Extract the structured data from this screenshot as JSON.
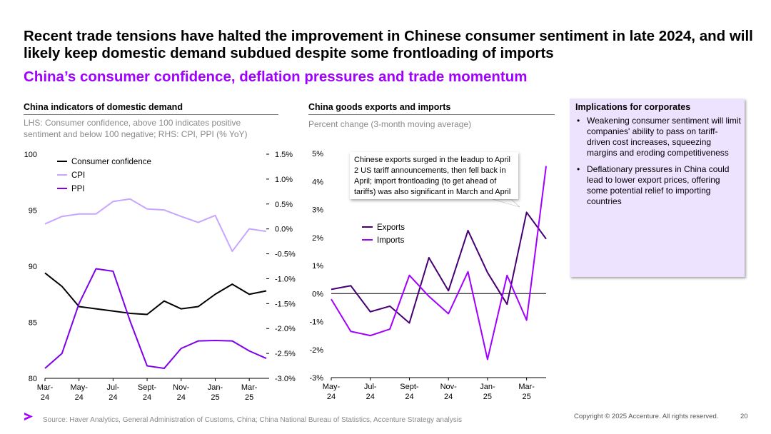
{
  "header": {
    "title": "Recent trade tensions have halted the improvement in Chinese consumer sentiment in late 2024, and will likely keep domestic demand subdued despite some frontloading of imports",
    "subtitle": "China’s consumer confidence, deflation pressures and trade momentum"
  },
  "left_panel": {
    "title": "China indicators of domestic demand",
    "note": "LHS: Consumer confidence, above 100 indicates positive sentiment and below 100 negative; RHS: CPI, PPI (% YoY)"
  },
  "mid_panel": {
    "title": "China goods exports and  imports",
    "note": "Percent change (3-month moving average)",
    "callout": "Chinese exports surged in the leadup to April 2 US tariff announcements, then fell back in April; import frontloading (to get ahead of tariffs) was also significant in March and April"
  },
  "implications": {
    "title": "Implications for corporates",
    "bullets": [
      "Weakening consumer sentiment will limit companies' ability to pass on tariff-driven cost increases, squeezing margins and eroding competitiveness",
      "Deflationary pressures in China could lead to lower export prices, offering some potential relief to importing countries"
    ]
  },
  "footer": {
    "source": "Source: Haver Analytics, General Administration of Customs, China; China National Bureau of Statistics, Accenture Strategy analysis",
    "copyright": "Copyright © 2025 Accenture. All rights reserved.",
    "page": "20",
    "logo_icon": "accenture-chevron-icon"
  },
  "colors": {
    "accent": "#a100ff",
    "consumer_confidence": "#000000",
    "cpi": "#c7a6ff",
    "ppi": "#7e00e8",
    "exports": "#460073",
    "imports": "#a100ff",
    "implications_bg": "#ede3ff"
  },
  "chart_data": [
    {
      "type": "line",
      "title": "China indicators of domestic demand",
      "x_tick_labels": [
        [
          "Mar-",
          "24"
        ],
        [
          "May-",
          "24"
        ],
        [
          "Jul-",
          "24"
        ],
        [
          "Sept-",
          "24"
        ],
        [
          "Nov-",
          "24"
        ],
        [
          "Jan-",
          "25"
        ],
        [
          "Mar-",
          "25"
        ]
      ],
      "y_left": {
        "ylim": [
          80,
          100
        ],
        "ticks": [
          "80",
          "85",
          "90",
          "95",
          "100"
        ]
      },
      "y_right": {
        "ylim": [
          -3.0,
          1.5
        ],
        "ticks": [
          "-3.0%",
          "-2.5%",
          "-2.0%",
          "-1.5%",
          "-1.0%",
          "-0.5%",
          "0.0%",
          "0.5%",
          "1.0%",
          "1.5%"
        ]
      },
      "months": [
        "2024-03",
        "2024-04",
        "2024-05",
        "2024-06",
        "2024-07",
        "2024-08",
        "2024-09",
        "2024-10",
        "2024-11",
        "2024-12",
        "2025-01",
        "2025-02",
        "2025-03",
        "2025-04"
      ],
      "series": [
        {
          "name": "Consumer confidence",
          "axis": "left",
          "values": [
            89.4,
            88.2,
            86.4,
            86.2,
            86.0,
            85.8,
            85.7,
            86.9,
            86.2,
            86.4,
            87.5,
            88.4,
            87.5,
            87.8
          ]
        },
        {
          "name": "CPI",
          "axis": "right",
          "values": [
            0.1,
            0.25,
            0.3,
            0.3,
            0.55,
            0.6,
            0.4,
            0.38,
            0.25,
            0.13,
            0.27,
            -0.45,
            0.0,
            -0.05
          ]
        },
        {
          "name": "PPI",
          "axis": "right",
          "values": [
            -2.8,
            -2.5,
            -1.5,
            -0.8,
            -0.85,
            -1.85,
            -2.75,
            -2.8,
            -2.4,
            -2.25,
            -2.24,
            -2.25,
            -2.45,
            -2.6
          ]
        }
      ],
      "legend": [
        "Consumer confidence",
        "CPI",
        "PPI"
      ],
      "legend_position": "top-left"
    },
    {
      "type": "line",
      "title": "China goods exports and  imports",
      "x_tick_labels": [
        [
          "May-",
          "24"
        ],
        [
          "Jul-",
          "24"
        ],
        [
          "Sept-",
          "24"
        ],
        [
          "Nov-",
          "24"
        ],
        [
          "Jan-",
          "25"
        ],
        [
          "Mar-",
          "25"
        ]
      ],
      "ylim": [
        -3,
        5
      ],
      "y_ticks": [
        "-3%",
        "-2%",
        "-1%",
        "0%",
        "1%",
        "2%",
        "3%",
        "4%",
        "5%"
      ],
      "months": [
        "2024-05",
        "2024-06",
        "2024-07",
        "2024-08",
        "2024-09",
        "2024-10",
        "2024-11",
        "2024-12",
        "2025-01",
        "2025-02",
        "2025-03",
        "2025-04"
      ],
      "series": [
        {
          "name": "Exports",
          "values": [
            0.15,
            0.28,
            -0.65,
            -0.45,
            -1.05,
            1.28,
            0.1,
            2.25,
            0.75,
            -0.38,
            2.9,
            1.95
          ]
        },
        {
          "name": "Imports",
          "values": [
            -0.2,
            -1.35,
            -1.5,
            -1.27,
            0.65,
            -0.1,
            -0.72,
            0.78,
            -2.35,
            0.65,
            -0.95,
            4.55
          ]
        }
      ],
      "legend": [
        "Exports",
        "Imports"
      ],
      "legend_position": "middle-left"
    }
  ]
}
